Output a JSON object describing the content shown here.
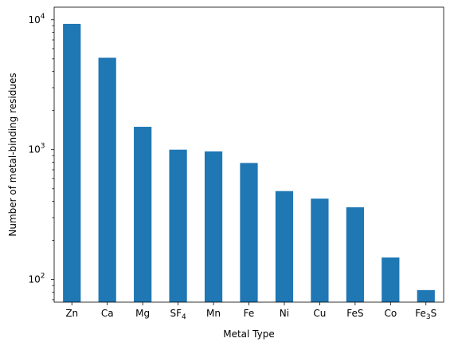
{
  "chart_data": {
    "type": "bar",
    "categories": [
      "Zn",
      "Ca",
      "Mg",
      "SF4",
      "Mn",
      "Fe",
      "Ni",
      "Cu",
      "FeS",
      "Co",
      "Fe3S"
    ],
    "category_labels": [
      {
        "base": "Zn",
        "sub": ""
      },
      {
        "base": "Ca",
        "sub": ""
      },
      {
        "base": "Mg",
        "sub": ""
      },
      {
        "base": "SF",
        "sub": "4"
      },
      {
        "base": "Mn",
        "sub": ""
      },
      {
        "base": "Fe",
        "sub": ""
      },
      {
        "base": "Ni",
        "sub": ""
      },
      {
        "base": "Cu",
        "sub": ""
      },
      {
        "base": "FeS",
        "sub": ""
      },
      {
        "base": "Co",
        "sub": ""
      },
      {
        "base": "Fe",
        "sub": "3",
        "after": "S"
      }
    ],
    "values": [
      9300,
      5100,
      1500,
      1000,
      970,
      790,
      480,
      420,
      360,
      148,
      83
    ],
    "xlabel": "Metal Type",
    "ylabel": "Number of metal-binding residues",
    "yscale": "log",
    "ylim": [
      67,
      12500
    ],
    "yticks": [
      {
        "value": 100,
        "base": "10",
        "exp": "2"
      },
      {
        "value": 1000,
        "base": "10",
        "exp": "3"
      },
      {
        "value": 10000,
        "base": "10",
        "exp": "4"
      }
    ],
    "grid": false,
    "bar_color": "#1f77b4"
  }
}
